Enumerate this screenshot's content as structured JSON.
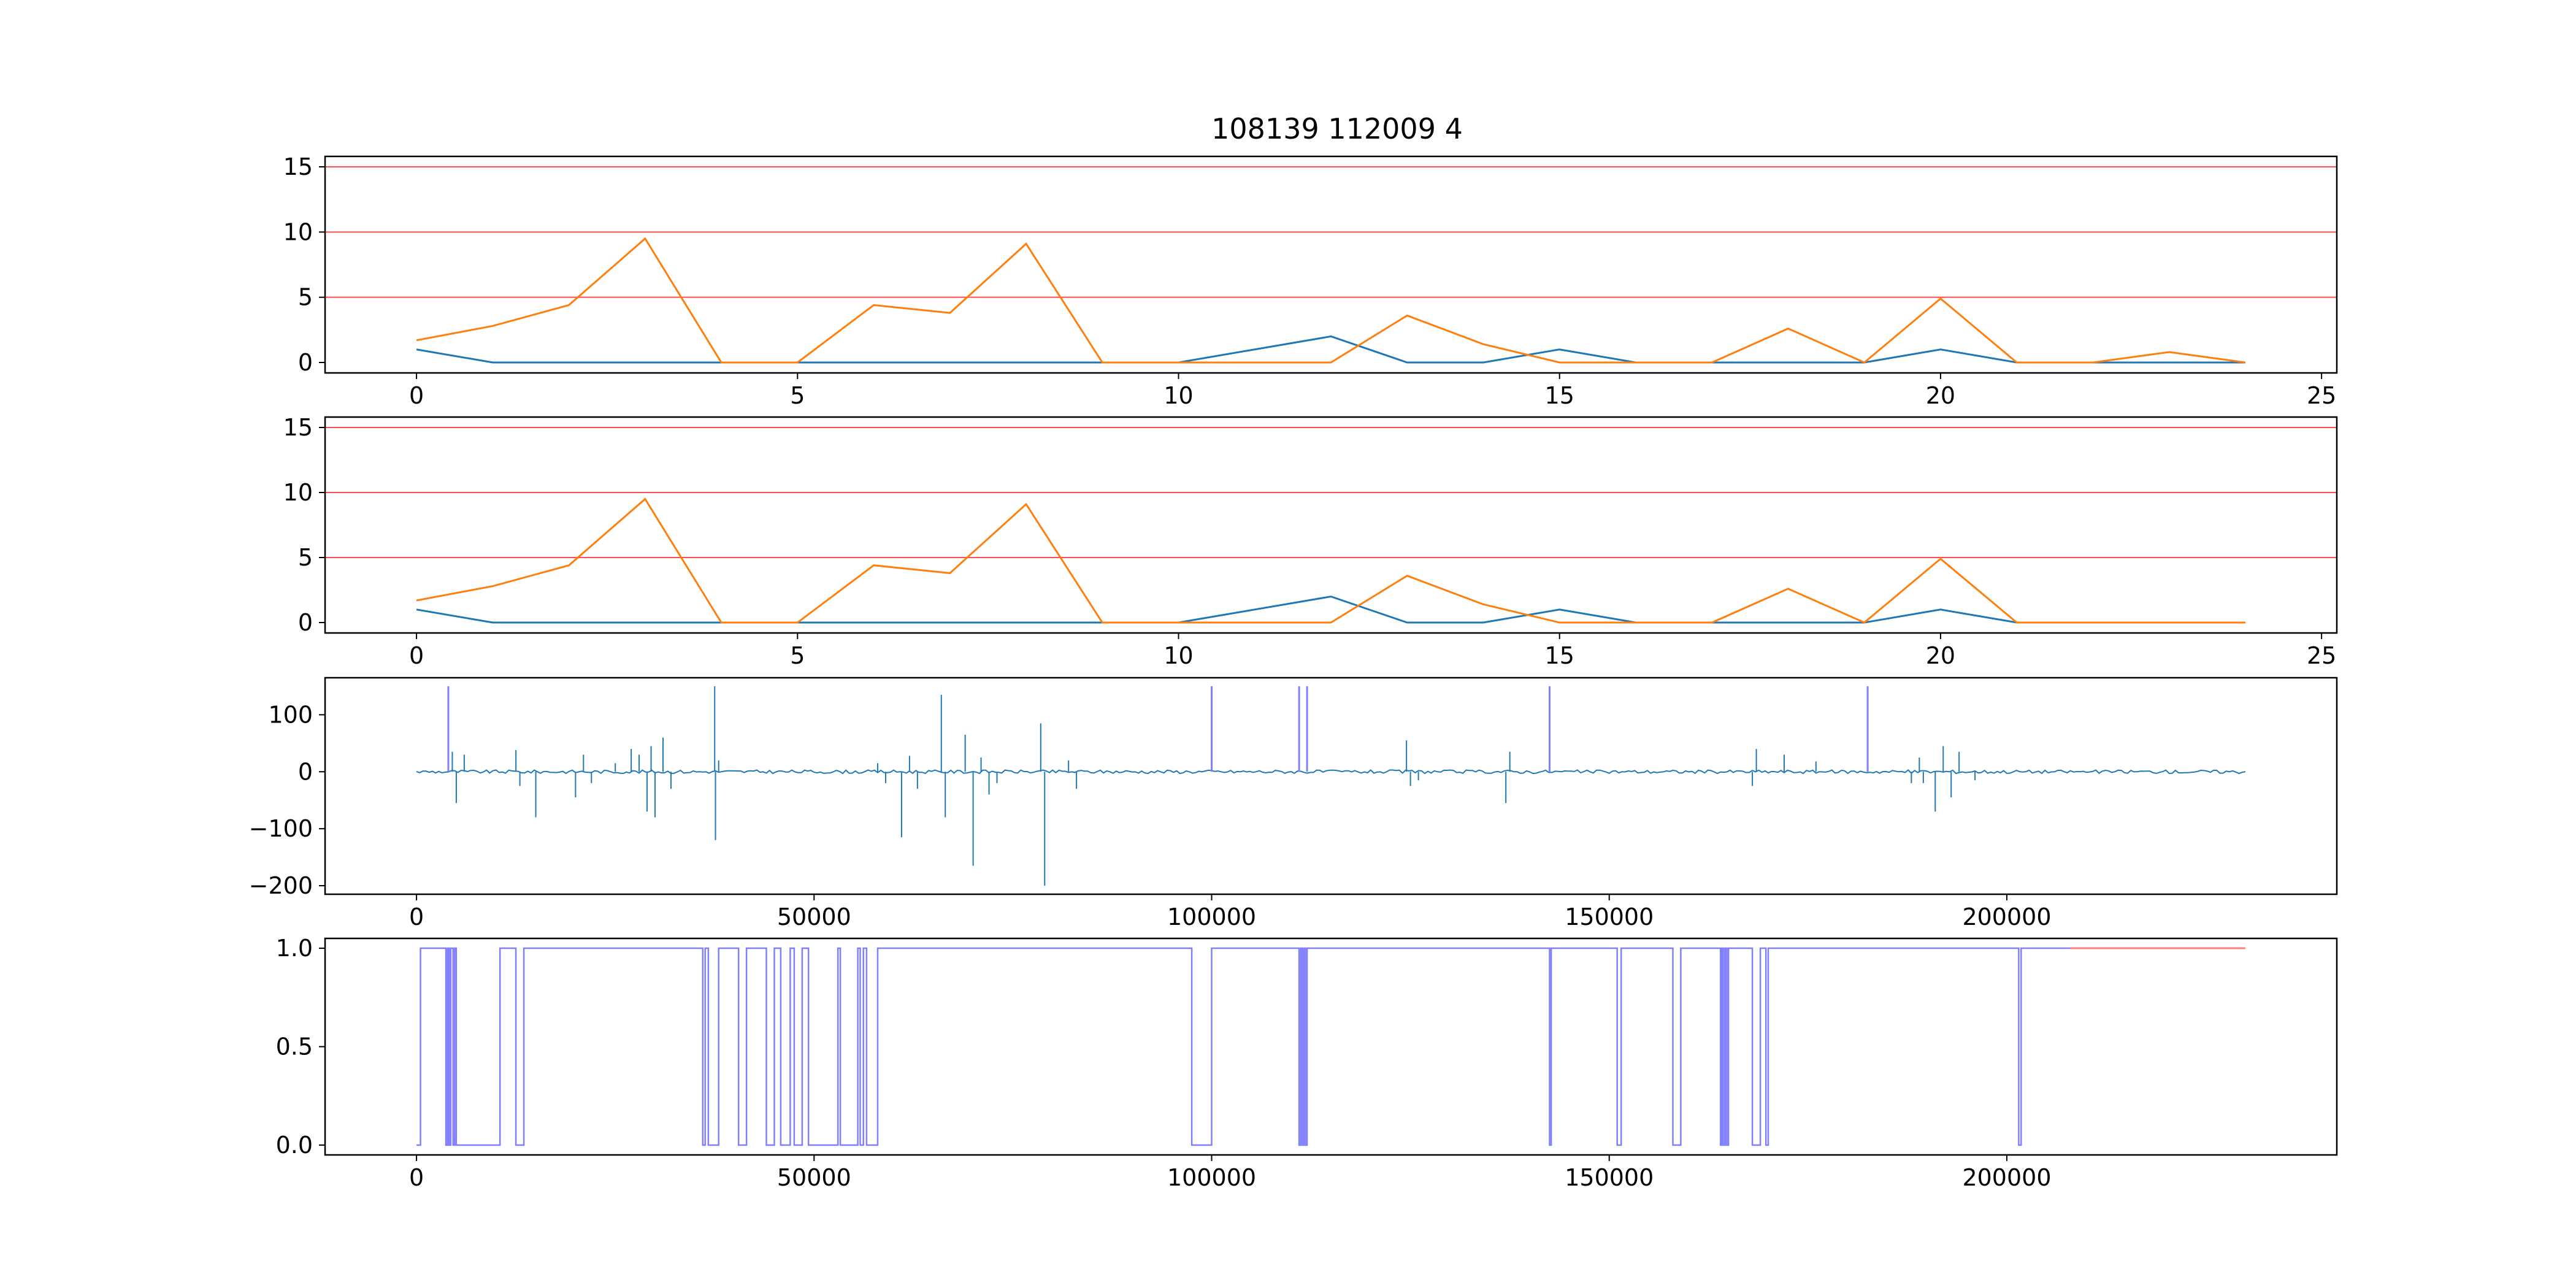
{
  "title": "108139 112009 4",
  "colors": {
    "blue": "#1f77b4",
    "orange": "#ff7f0e",
    "red": "#ff0000",
    "purple": "#8080ff",
    "pink": "#ff8080",
    "axis": "#000000"
  },
  "chart_data": [
    {
      "type": "line",
      "title": "108139 112009 4",
      "x": [
        0,
        1,
        2,
        3,
        4,
        5,
        6,
        7,
        8,
        9,
        10,
        11,
        12,
        13,
        14,
        15,
        16,
        17,
        18,
        19,
        20,
        21,
        22,
        23,
        24
      ],
      "series": [
        {
          "color": "#1f77b4",
          "values": [
            1,
            0,
            0,
            0,
            0,
            0,
            0,
            0,
            0,
            0,
            0,
            1,
            2,
            0,
            0,
            1,
            0,
            0,
            0,
            0,
            1,
            0,
            0,
            0,
            0
          ]
        },
        {
          "color": "#ff7f0e",
          "values": [
            1.7,
            2.8,
            4.4,
            9.5,
            0,
            0,
            4.4,
            3.8,
            9.1,
            0,
            0,
            0,
            0,
            3.6,
            1.4,
            0,
            0,
            0,
            2.6,
            0,
            4.9,
            0,
            0,
            0.8,
            0
          ]
        }
      ],
      "hlines": [
        5,
        10,
        15
      ],
      "xlim": [
        -1.2,
        25.2
      ],
      "ylim": [
        -0.8,
        15.8
      ],
      "xticks": [
        0,
        5,
        10,
        15,
        20,
        25
      ],
      "yticks": [
        0,
        5,
        10,
        15
      ],
      "grid": false
    },
    {
      "type": "line",
      "x": [
        0,
        1,
        2,
        3,
        4,
        5,
        6,
        7,
        8,
        9,
        10,
        11,
        12,
        13,
        14,
        15,
        16,
        17,
        18,
        19,
        20,
        21,
        22,
        23,
        24
      ],
      "series": [
        {
          "color": "#1f77b4",
          "values": [
            1,
            0,
            0,
            0,
            0,
            0,
            0,
            0,
            0,
            0,
            0,
            1,
            2,
            0,
            0,
            1,
            0,
            0,
            0,
            0,
            1,
            0,
            0,
            0,
            0
          ]
        },
        {
          "color": "#ff7f0e",
          "values": [
            1.7,
            2.8,
            4.4,
            9.5,
            0,
            0,
            4.4,
            3.8,
            9.1,
            0,
            0,
            0,
            0,
            3.6,
            1.4,
            0,
            0,
            0,
            2.6,
            0,
            4.9,
            0,
            0,
            0,
            0
          ]
        }
      ],
      "hlines": [
        5,
        10,
        15
      ],
      "xlim": [
        -1.2,
        25.2
      ],
      "ylim": [
        -0.8,
        15.8
      ],
      "xticks": [
        0,
        5,
        10,
        15,
        20,
        25
      ],
      "yticks": [
        0,
        5,
        10,
        15
      ],
      "grid": false
    },
    {
      "type": "line",
      "x_range": [
        0,
        230000
      ],
      "noise_amplitude": 3,
      "series": [
        {
          "color": "#1f77b4",
          "spikes": [
            [
              4500,
              35
            ],
            [
              5000,
              -55
            ],
            [
              6000,
              30
            ],
            [
              12500,
              38
            ],
            [
              13000,
              -25
            ],
            [
              15000,
              -80
            ],
            [
              20000,
              -45
            ],
            [
              21000,
              30
            ],
            [
              22000,
              -20
            ],
            [
              25000,
              15
            ],
            [
              27000,
              40
            ],
            [
              28000,
              30
            ],
            [
              29000,
              -70
            ],
            [
              29500,
              45
            ],
            [
              30000,
              -80
            ],
            [
              31000,
              60
            ],
            [
              32000,
              -30
            ],
            [
              37500,
              150
            ],
            [
              37600,
              -120
            ],
            [
              38000,
              20
            ],
            [
              58000,
              15
            ],
            [
              59000,
              -20
            ],
            [
              61000,
              -115
            ],
            [
              62000,
              28
            ],
            [
              63000,
              -30
            ],
            [
              66000,
              135
            ],
            [
              66500,
              -80
            ],
            [
              69000,
              65
            ],
            [
              70000,
              -165
            ],
            [
              71000,
              25
            ],
            [
              72000,
              -40
            ],
            [
              73000,
              -20
            ],
            [
              78500,
              85
            ],
            [
              79000,
              -200
            ],
            [
              82000,
              20
            ],
            [
              83000,
              -30
            ],
            [
              124500,
              55
            ],
            [
              125000,
              -25
            ],
            [
              126000,
              -15
            ],
            [
              137000,
              -55
            ],
            [
              137500,
              35
            ],
            [
              168000,
              -25
            ],
            [
              168500,
              40
            ],
            [
              172000,
              30
            ],
            [
              176000,
              18
            ],
            [
              188000,
              -20
            ],
            [
              189000,
              25
            ],
            [
              189500,
              -20
            ],
            [
              191000,
              -70
            ],
            [
              192000,
              45
            ],
            [
              193000,
              -45
            ],
            [
              194000,
              35
            ],
            [
              196000,
              -15
            ]
          ]
        },
        {
          "color": "#8080ff",
          "spikes": [
            [
              4000,
              150
            ],
            [
              100000,
              150
            ],
            [
              111000,
              150
            ],
            [
              112000,
              150
            ],
            [
              142500,
              150
            ],
            [
              182500,
              150
            ]
          ]
        }
      ],
      "xlim": [
        -11500,
        241500
      ],
      "ylim": [
        -215,
        165
      ],
      "xticks": [
        0,
        50000,
        100000,
        150000,
        200000
      ],
      "yticks": [
        100,
        0,
        -100,
        -200
      ],
      "ytick_labels": [
        "100",
        "0",
        "−100",
        "−200"
      ],
      "grid": false
    },
    {
      "type": "line",
      "x_range": [
        0,
        230000
      ],
      "series": [
        {
          "color": "#ff8080",
          "segment": [
            208000,
            230000,
            1.0
          ]
        },
        {
          "color": "#8080ff",
          "steps": [
            [
              0,
              0
            ],
            [
              500,
              1
            ],
            [
              3700,
              0
            ],
            [
              3900,
              1
            ],
            [
              4100,
              0
            ],
            [
              4300,
              1
            ],
            [
              4600,
              0
            ],
            [
              4800,
              1
            ],
            [
              5000,
              0
            ],
            [
              10500,
              1
            ],
            [
              12500,
              0
            ],
            [
              13500,
              1
            ],
            [
              36000,
              0
            ],
            [
              36300,
              1
            ],
            [
              36700,
              0
            ],
            [
              38000,
              1
            ],
            [
              40500,
              0
            ],
            [
              41500,
              1
            ],
            [
              44000,
              0
            ],
            [
              45000,
              1
            ],
            [
              45800,
              0
            ],
            [
              47000,
              1
            ],
            [
              47500,
              0
            ],
            [
              48500,
              1
            ],
            [
              49300,
              0
            ],
            [
              53000,
              1
            ],
            [
              53300,
              0
            ],
            [
              55500,
              1
            ],
            [
              55800,
              0
            ],
            [
              56200,
              1
            ],
            [
              56600,
              0
            ],
            [
              58000,
              1
            ],
            [
              97500,
              0
            ],
            [
              100000,
              1
            ],
            [
              111000,
              0
            ],
            [
              111200,
              1
            ],
            [
              111400,
              0
            ],
            [
              111600,
              1
            ],
            [
              111800,
              0
            ],
            [
              112000,
              1
            ],
            [
              142500,
              0
            ],
            [
              142700,
              1
            ],
            [
              151000,
              0
            ],
            [
              151500,
              1
            ],
            [
              158000,
              0
            ],
            [
              159000,
              1
            ],
            [
              164000,
              0
            ],
            [
              164200,
              1
            ],
            [
              164400,
              0
            ],
            [
              164600,
              1
            ],
            [
              164800,
              0
            ],
            [
              165000,
              1
            ],
            [
              168000,
              0
            ],
            [
              169000,
              1
            ],
            [
              169700,
              0
            ],
            [
              170000,
              1
            ],
            [
              201500,
              0
            ],
            [
              201800,
              1
            ],
            [
              208000,
              1
            ]
          ]
        }
      ],
      "xlim": [
        -11500,
        241500
      ],
      "ylim": [
        -0.05,
        1.05
      ],
      "xticks": [
        0,
        50000,
        100000,
        150000,
        200000
      ],
      "yticks": [
        0.0,
        0.5,
        1.0
      ],
      "ytick_labels": [
        "0.0",
        "0.5",
        "1.0"
      ],
      "grid": false
    }
  ]
}
